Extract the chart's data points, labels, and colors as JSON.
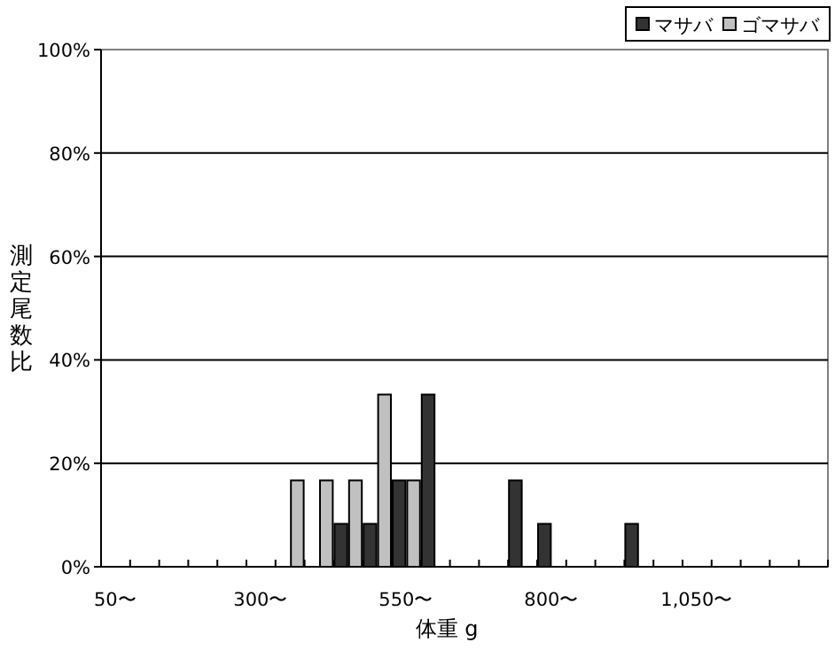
{
  "chart_data": {
    "type": "bar",
    "xlabel": "体重 g",
    "ylabel": "測定尾数比",
    "categories": [
      "50〜",
      null,
      null,
      null,
      null,
      "300〜",
      null,
      null,
      null,
      null,
      "550〜",
      null,
      null,
      null,
      null,
      "800〜",
      null,
      null,
      null,
      null,
      "1,050〜",
      null,
      null,
      null,
      null
    ],
    "series": [
      {
        "name": "マサバ",
        "color": "#333333",
        "values": [
          0,
          0,
          0,
          0,
          0,
          0,
          0,
          0,
          8.3,
          8.3,
          16.7,
          33.3,
          0,
          0,
          16.7,
          8.3,
          0,
          0,
          8.3,
          0,
          0,
          0,
          0,
          0,
          0
        ]
      },
      {
        "name": "ゴマサバ",
        "color": "#c0c0c0",
        "values": [
          0,
          0,
          0,
          0,
          0,
          0,
          16.7,
          16.7,
          16.7,
          33.3,
          16.7,
          0,
          0,
          0,
          0,
          0,
          0,
          0,
          0,
          0,
          0,
          0,
          0,
          0,
          0
        ]
      }
    ],
    "ylim": [
      0,
      100
    ],
    "yticks": [
      {
        "value": 0,
        "label": "0%"
      },
      {
        "value": 20,
        "label": "20%"
      },
      {
        "value": 40,
        "label": "40%"
      },
      {
        "value": 60,
        "label": "60%"
      },
      {
        "value": 80,
        "label": "80%"
      },
      {
        "value": 100,
        "label": "100%"
      }
    ],
    "grid": "y",
    "legend": "top right"
  }
}
